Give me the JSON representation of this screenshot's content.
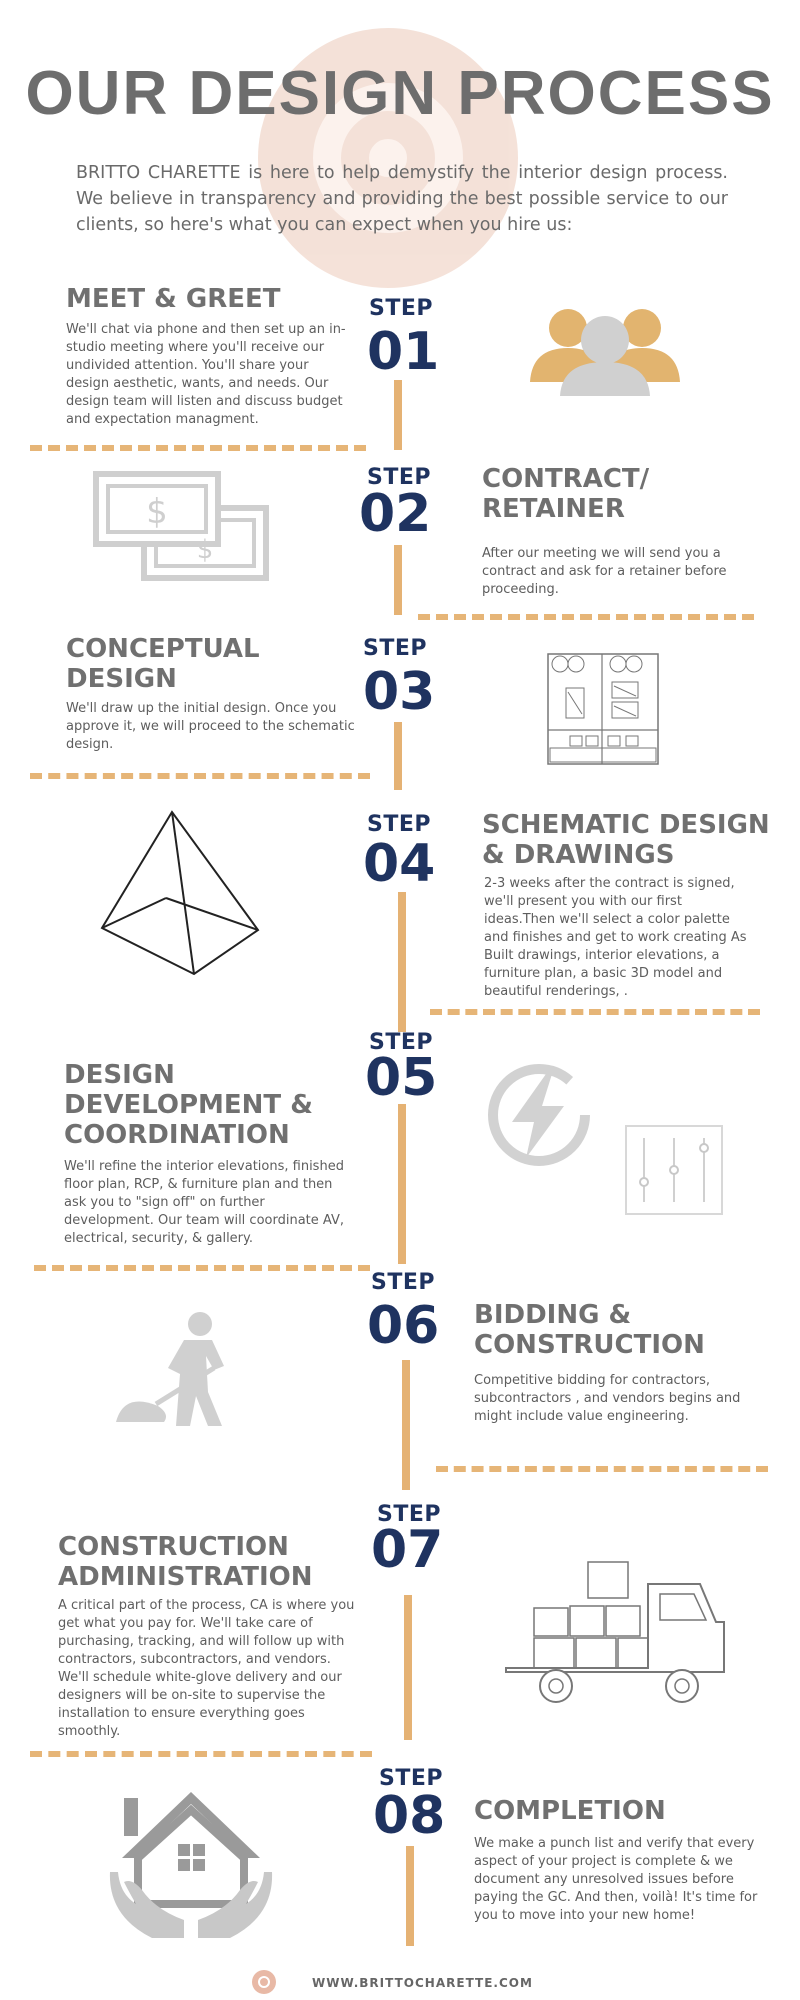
{
  "header": {
    "title": "OUR DESIGN PROCESS",
    "intro": "BRITTO CHARETTE is here to help demystify the interior design process. We believe in transparency and providing the best possible service to our clients, so here's what you can expect when you hire us:"
  },
  "step_label": "STEP",
  "steps": [
    {
      "number": "01",
      "title": "MEET & GREET",
      "body": "We'll chat via phone and then set up an in-studio meeting where you'll receive our undivided attention. You'll share your design aesthetic, wants, and needs. Our design team will listen and discuss budget and expectation managment.",
      "icon": "people-icon"
    },
    {
      "number": "02",
      "title": "CONTRACT/ RETAINER",
      "body": "After our meeting we will send you a contract and ask for a retainer before proceeding.",
      "icon": "dollar-bills-icon",
      "bill_symbol": "$"
    },
    {
      "number": "03",
      "title": "CONCEPTUAL DESIGN",
      "body": "We'll draw up the initial design. Once you approve it, we will proceed to the schematic design.",
      "icon": "floor-plan-icon"
    },
    {
      "number": "04",
      "title": "SCHEMATIC DESIGN & DRAWINGS",
      "body": "2-3 weeks after the contract is signed, we'll present you with our first ideas.Then we'll select a color palette and finishes and get to work creating As Built drawings, interior elevations, a furniture plan, a basic 3D model and beautiful renderings, .",
      "icon": "pyramid-icon"
    },
    {
      "number": "05",
      "title": "DESIGN DEVELOPMENT & COORDINATION",
      "body": "We'll refine the interior elevations, finished floor plan, RCP, & furniture plan and then ask you to \"sign off\" on further development. Our team will coordinate AV, electrical, security, & gallery.",
      "icon": "lightning-icon",
      "icon2": "sliders-icon"
    },
    {
      "number": "06",
      "title": "BIDDING & CONSTRUCTION",
      "body": "Competitive bidding for contractors, subcontractors , and vendors begins and might include value engineering.",
      "icon": "worker-shovel-icon"
    },
    {
      "number": "07",
      "title": "CONSTRUCTION ADMINISTRATION",
      "body": "A critical part of the process, CA is where you get what you pay for. We'll take care of purchasing, tracking, and will follow up with contractors, subcontractors, and vendors. We'll schedule white-glove delivery and our designers will be on-site to supervise the installation to ensure everything goes smoothly.",
      "icon": "delivery-truck-icon"
    },
    {
      "number": "08",
      "title": "COMPLETION",
      "body": "We make a punch list and verify that every aspect of your project is complete & we document any unresolved issues before paying the GC. And then, voilà! It's time for you to move into your new home!",
      "icon": "house-hands-icon"
    }
  ],
  "footer": {
    "url": "WWW.BRITTOCHARETTE.COM",
    "logo": "britto-charette-logo"
  },
  "colors": {
    "navy": "#1f3360",
    "gold": "#e5b274",
    "gray_text": "#707070",
    "icon_gray": "#cfcfcf"
  }
}
